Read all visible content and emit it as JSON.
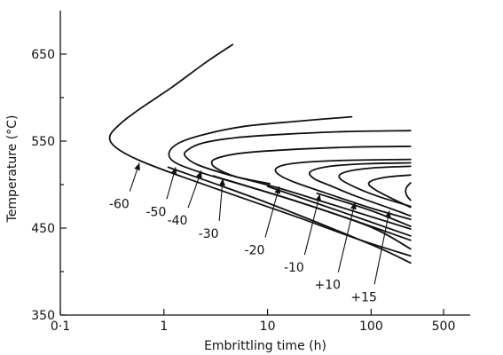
{
  "chart_data": {
    "type": "line",
    "title": "",
    "xlabel": "Embrittling time (h)",
    "ylabel": "Temperature (°C)",
    "xscale": "log",
    "xlim": [
      0.1,
      500
    ],
    "ylim": [
      350,
      700
    ],
    "xticks": [
      {
        "value": 0.1,
        "label": "0·1"
      },
      {
        "value": 1,
        "label": "1"
      },
      {
        "value": 10,
        "label": "10"
      },
      {
        "value": 100,
        "label": "100"
      },
      {
        "value": 500,
        "label": "500"
      }
    ],
    "yticks": [
      {
        "value": 350,
        "label": "350"
      },
      {
        "value": 450,
        "label": "450"
      },
      {
        "value": 550,
        "label": "550"
      },
      {
        "value": 650,
        "label": "650"
      }
    ],
    "grid": false,
    "series": [
      {
        "label": "-60",
        "label_at": [
          0.37,
          478
        ],
        "arrow_to": [
          0.58,
          525
        ],
        "points": [
          [
            4.6,
            661
          ],
          [
            2.5,
            640
          ],
          [
            1.2,
            612
          ],
          [
            0.6,
            588
          ],
          [
            0.38,
            570
          ],
          [
            0.3,
            555
          ],
          [
            0.35,
            542
          ],
          [
            0.6,
            527
          ],
          [
            1.5,
            509
          ],
          [
            5,
            487
          ],
          [
            20,
            462
          ],
          [
            80,
            436
          ],
          [
            240,
            418
          ]
        ]
      },
      {
        "label": "-50",
        "label_at": [
          0.84,
          469
        ],
        "arrow_to": [
          1.3,
          520
        ],
        "points": [
          [
            65,
            578
          ],
          [
            20,
            573
          ],
          [
            6,
            567
          ],
          [
            2.5,
            558
          ],
          [
            1.4,
            548
          ],
          [
            1.12,
            536
          ],
          [
            1.3,
            525
          ],
          [
            2.4,
            513
          ],
          [
            6,
            499
          ],
          [
            20,
            480
          ],
          [
            80,
            456
          ],
          [
            240,
            436
          ]
        ]
      },
      {
        "label": "-40",
        "label_at": [
          1.35,
          459
        ],
        "arrow_to": [
          2.3,
          516
        ],
        "points": [
          [
            240,
            562
          ],
          [
            60,
            561
          ],
          [
            15,
            558
          ],
          [
            5,
            554
          ],
          [
            2.4,
            548
          ],
          [
            1.7,
            540
          ],
          [
            1.6,
            533
          ],
          [
            2.1,
            523
          ],
          [
            4,
            512
          ],
          [
            12,
            497
          ],
          [
            45,
            476
          ],
          [
            240,
            449
          ]
        ]
      },
      {
        "label": "-30",
        "label_at": [
          2.7,
          444
        ],
        "arrow_to": [
          3.7,
          507
        ],
        "points": [
          [
            240,
            544
          ],
          [
            60,
            543
          ],
          [
            15,
            540
          ],
          [
            5.5,
            536
          ],
          [
            3.2,
            530
          ],
          [
            2.9,
            524
          ],
          [
            3.4,
            517
          ],
          [
            5,
            509
          ],
          [
            10.5,
            501
          ]
        ]
      },
      {
        "label": "-20",
        "label_at": [
          7.5,
          425
        ],
        "arrow_to": [
          13,
          498
        ],
        "points": [
          [
            240,
            529
          ],
          [
            60,
            528
          ],
          [
            25,
            526
          ],
          [
            15,
            523
          ],
          [
            12,
            518
          ],
          [
            13,
            511
          ],
          [
            18,
            503
          ],
          [
            35,
            491
          ],
          [
            100,
            473
          ],
          [
            240,
            460
          ]
        ]
      },
      {
        "label": "-10",
        "label_at": [
          18,
          405
        ],
        "arrow_to": [
          32,
          489
        ],
        "points": [
          [
            240,
            525
          ],
          [
            90,
            524
          ],
          [
            40,
            521
          ],
          [
            26,
            515
          ],
          [
            28,
            507
          ],
          [
            40,
            499
          ],
          [
            70,
            487
          ],
          [
            150,
            473
          ],
          [
            240,
            464
          ]
        ]
      },
      {
        "label": "+10",
        "label_at": [
          38,
          385
        ],
        "arrow_to": [
          70,
          480
        ],
        "points": [
          [
            240,
            521
          ],
          [
            100,
            519
          ],
          [
            55,
            514
          ],
          [
            50,
            507
          ],
          [
            70,
            497
          ],
          [
            120,
            486
          ],
          [
            240,
            475
          ]
        ]
      },
      {
        "label": "+15",
        "label_at": [
          85,
          371
        ],
        "arrow_to": [
          150,
          470
        ],
        "points": [
          [
            240,
            511
          ],
          [
            130,
            508
          ],
          [
            95,
            502
          ],
          [
            110,
            494
          ],
          [
            165,
            483
          ],
          [
            240,
            474
          ]
        ]
      },
      {
        "label": "",
        "label_at": null,
        "arrow_to": null,
        "points": [
          [
            240,
            502
          ],
          [
            220,
            497
          ],
          [
            215,
            492
          ],
          [
            222,
            487
          ],
          [
            240,
            482
          ]
        ]
      }
    ],
    "lower_lines": [
      [
        [
          1.1,
          520
        ],
        [
          10,
          479
        ],
        [
          100,
          431
        ],
        [
          240,
          410
        ]
      ],
      [
        [
          3,
          510
        ],
        [
          20,
          480
        ],
        [
          100,
          451
        ],
        [
          240,
          426
        ]
      ],
      [
        [
          10,
          498
        ],
        [
          60,
          466
        ],
        [
          240,
          441
        ]
      ],
      [
        [
          30,
          490
        ],
        [
          100,
          470
        ],
        [
          240,
          452
        ]
      ]
    ]
  }
}
